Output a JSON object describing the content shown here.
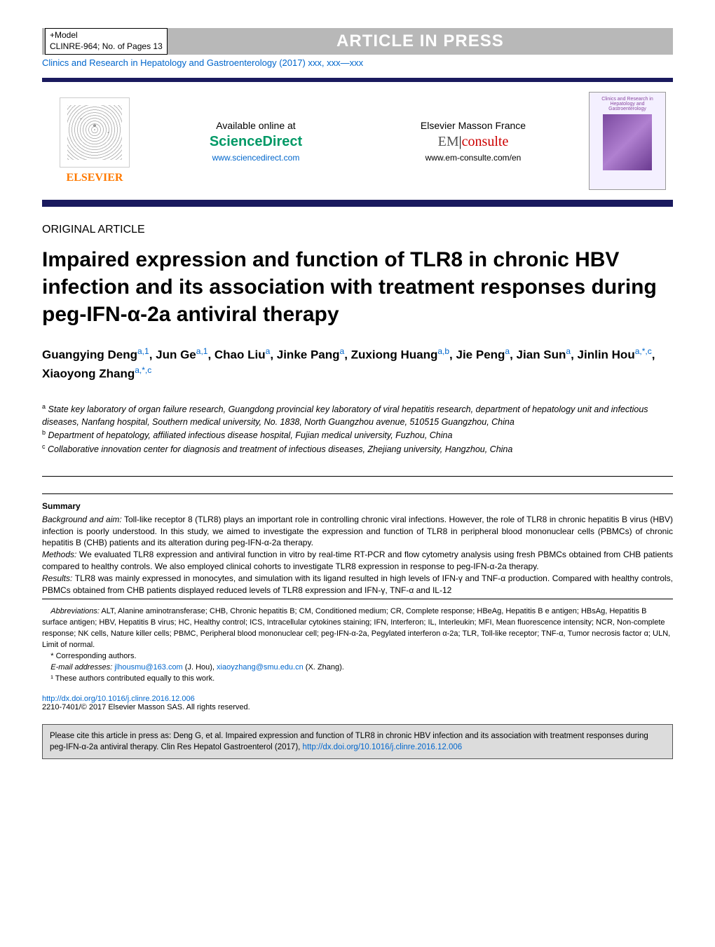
{
  "header": {
    "model_line1": "+Model",
    "model_line2": "CLINRE-964;    No. of Pages 13",
    "aip": "ARTICLE IN PRESS",
    "journal_ref": "Clinics and Research in Hepatology and Gastroenterology (2017) xxx, xxx—xxx"
  },
  "pub": {
    "elsevier": "ELSEVIER",
    "available": "Available online at",
    "sciencedirect": "ScienceDirect",
    "sd_url": "www.sciencedirect.com",
    "masson": "Elsevier Masson France",
    "em": "EM",
    "consulte": "consulte",
    "em_url": "www.em-consulte.com/en",
    "thumb_title": "Clinics and Research in Hepatology and Gastroenterology"
  },
  "article": {
    "type": "ORIGINAL ARTICLE",
    "title": "Impaired expression and function of TLR8 in chronic HBV infection and its association with treatment responses during peg-IFN-α-2a antiviral therapy"
  },
  "authors_html": "Guangying Deng<sup>a,1</sup>, Jun Ge<sup>a,1</sup>, Chao Liu<sup>a</sup>, Jinke Pang<sup>a</sup>, Zuxiong Huang<sup>a,b</sup>, Jie Peng<sup>a</sup>, Jian Sun<sup>a</sup>, Jinlin Hou<sup>a,*,c</sup>, Xiaoyong Zhang<sup>a,*,c</sup>",
  "affiliations": {
    "a": "State key laboratory of organ failure research, Guangdong provincial key laboratory of viral hepatitis research, department of hepatology unit and infectious diseases, Nanfang hospital, Southern medical university, No. 1838, North Guangzhou avenue, 510515 Guangzhou, China",
    "b": "Department of hepatology, affiliated infectious disease hospital, Fujian medical university, Fuzhou, China",
    "c": "Collaborative innovation center for diagnosis and treatment of infectious diseases, Zhejiang university, Hangzhou, China"
  },
  "summary": {
    "head": "Summary",
    "background_label": "Background and aim:",
    "background": "Toll-like receptor 8 (TLR8) plays an important role in controlling chronic viral infections. However, the role of TLR8 in chronic hepatitis B virus (HBV) infection is poorly understood. In this study, we aimed to investigate the expression and function of TLR8 in peripheral blood mononuclear cells (PBMCs) of chronic hepatitis B (CHB) patients and its alteration during peg-IFN-α-2a therapy.",
    "methods_label": "Methods:",
    "methods": "We evaluated TLR8 expression and antiviral function in vitro by real-time RT-PCR and flow cytometry analysis using fresh PBMCs obtained from CHB patients compared to healthy controls. We also employed clinical cohorts to investigate TLR8 expression in response to peg-IFN-α-2a therapy.",
    "results_label": "Results:",
    "results": "TLR8 was mainly expressed in monocytes, and simulation with its ligand resulted in high levels of IFN-γ and TNF-α production. Compared with healthy controls, PBMCs obtained from CHB patients displayed reduced levels of TLR8 expression and IFN-γ, TNF-α and IL-12"
  },
  "footnotes": {
    "abbr_label": "Abbreviations:",
    "abbr": "ALT, Alanine aminotransferase; CHB, Chronic hepatitis B; CM, Conditioned medium; CR, Complete response; HBeAg, Hepatitis B e antigen; HBsAg, Hepatitis B surface antigen; HBV, Hepatitis B virus; HC, Healthy control; ICS, Intracellular cytokines staining; IFN, Interferon; IL, Interleukin; MFI, Mean fluorescence intensity; NCR, Non-complete response; NK cells, Nature killer cells; PBMC, Peripheral blood mononuclear cell; peg-IFN-α-2a, Pegylated interferon α-2a; TLR, Toll-like receptor; TNF-α, Tumor necrosis factor α; ULN, Limit of normal.",
    "corr": "* Corresponding authors.",
    "email_label": "E-mail addresses:",
    "email1": "jlhousmu@163.com",
    "email1_name": "(J. Hou),",
    "email2": "xiaoyzhang@smu.edu.cn",
    "email2_name": "(X. Zhang).",
    "equal": "¹ These authors contributed equally to this work."
  },
  "doi": {
    "url": "http://dx.doi.org/10.1016/j.clinre.2016.12.006",
    "copyright": "2210-7401/© 2017 Elsevier Masson SAS. All rights reserved."
  },
  "cite": {
    "text": "Please cite this article in press as: Deng G, et al. Impaired expression and function of TLR8 in chronic HBV infection and its association with treatment responses during peg-IFN-α-2a antiviral therapy. Clin Res Hepatol Gastroenterol (2017),",
    "url": "http://dx.doi.org/10.1016/j.clinre.2016.12.006"
  }
}
